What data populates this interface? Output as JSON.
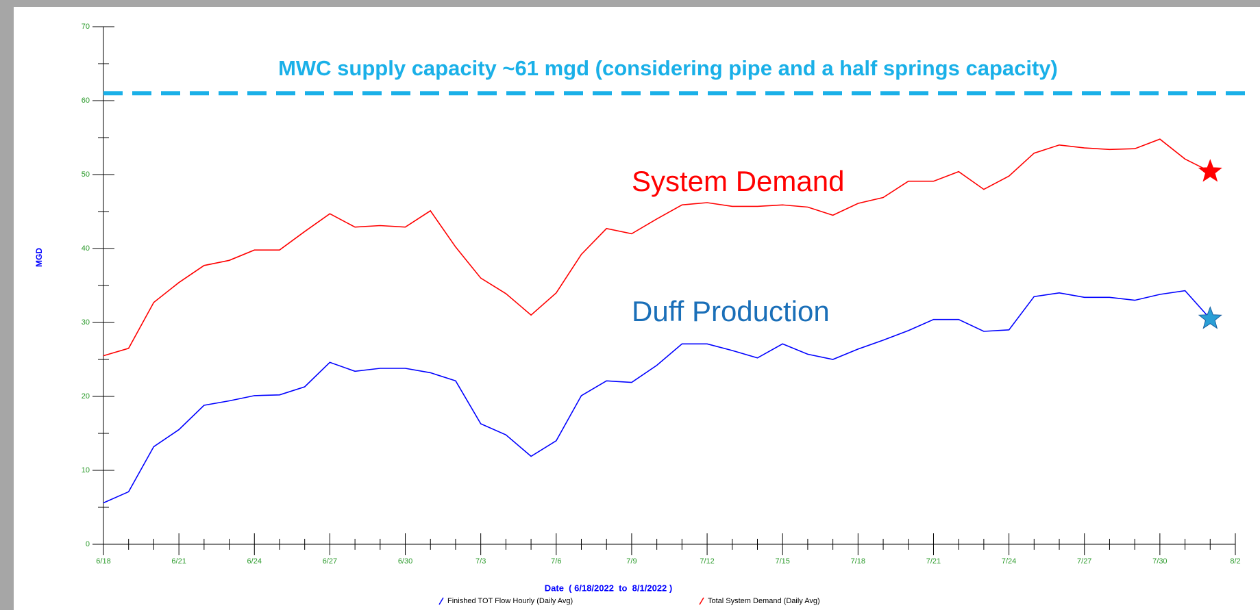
{
  "chart_data": {
    "type": "line",
    "y_label": "MGD",
    "x_label": "Date  ( 6/18/2022  to  8/1/2022 )",
    "categories": [
      "6/18",
      null,
      null,
      "6/21",
      null,
      null,
      "6/24",
      null,
      null,
      "6/27",
      null,
      null,
      "6/30",
      null,
      null,
      "7/3",
      null,
      null,
      "7/6",
      null,
      null,
      "7/9",
      null,
      null,
      "7/12",
      null,
      null,
      "7/15",
      null,
      null,
      "7/18",
      null,
      null,
      "7/21",
      null,
      null,
      "7/24",
      null,
      null,
      "7/27",
      null,
      null,
      "7/30",
      null,
      null,
      "8/2"
    ],
    "series": [
      {
        "name": "Finished TOT Flow Hourly (Daily Avg)",
        "color": "#0000ff",
        "end_marker": "star",
        "marker_color": "#2a9fd6",
        "values": [
          5.6,
          7.1,
          13.2,
          15.5,
          18.8,
          19.4,
          20.1,
          20.2,
          21.3,
          24.6,
          23.4,
          23.8,
          23.8,
          23.2,
          22.1,
          16.3,
          14.8,
          11.9,
          14.0,
          20.1,
          22.1,
          21.9,
          24.2,
          27.1,
          27.1,
          26.2,
          25.2,
          27.1,
          25.7,
          25.0,
          26.4,
          27.6,
          28.9,
          30.4,
          30.4,
          28.8,
          29.0,
          33.5,
          34.0,
          33.4,
          33.4,
          33.0,
          33.8,
          34.3,
          30.5,
          null
        ]
      },
      {
        "name": "Total System Demand (Daily Avg)",
        "color": "#ff0000",
        "end_marker": "star",
        "marker_color": "#ff0000",
        "values": [
          25.5,
          26.5,
          32.7,
          35.4,
          37.7,
          38.4,
          39.8,
          39.8,
          42.3,
          44.7,
          42.9,
          43.1,
          42.9,
          45.1,
          40.2,
          36.0,
          33.9,
          31.0,
          34.0,
          39.2,
          42.7,
          42.0,
          44.0,
          45.9,
          46.2,
          45.7,
          45.7,
          45.9,
          45.6,
          44.5,
          46.1,
          46.9,
          49.1,
          49.1,
          50.4,
          48.0,
          49.8,
          52.9,
          54.0,
          53.6,
          53.4,
          53.5,
          54.8,
          52.1,
          50.4,
          null
        ]
      }
    ],
    "ylim": [
      0,
      70
    ],
    "yticks": [
      0,
      10,
      20,
      30,
      40,
      50,
      60,
      70
    ],
    "yminorticks": [
      5,
      15,
      25,
      35,
      45,
      55,
      65
    ],
    "reference_line": {
      "value": 61,
      "color": "#1ab0e8",
      "style": "dashed"
    },
    "annotations": [
      {
        "text": "MWC supply capacity ~61 mgd (considering pipe and a half springs capacity)",
        "color": "#1ab0e8"
      },
      {
        "text": "System Demand",
        "color": "#ff0000"
      },
      {
        "text": "Duff Production",
        "color": "#1a6fb8"
      }
    ]
  }
}
